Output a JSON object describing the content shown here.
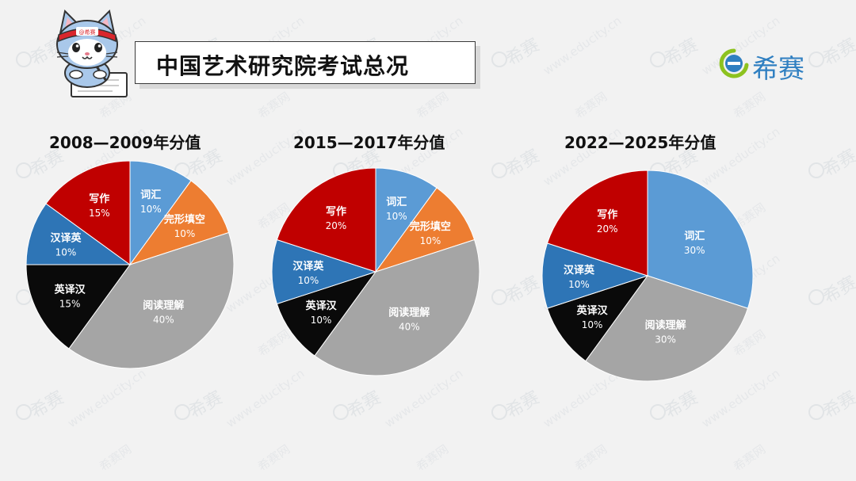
{
  "header": {
    "title": "中国艺术研究院考试总况",
    "brand_name": "希赛",
    "mascot_headband_text": "@希赛"
  },
  "watermark": {
    "brand": "希赛",
    "site": "www.educity.cn",
    "net": "希赛网"
  },
  "colors": {
    "词汇": "#5b9bd5",
    "完形填空": "#ed7d31",
    "阅读理解": "#a5a5a5",
    "英译汉": "#0a0a0a",
    "汉译英": "#2e75b6",
    "写作": "#c00000"
  },
  "chart_data": [
    {
      "type": "pie",
      "title": "2008—2009年分值",
      "slices": [
        {
          "label": "词汇",
          "value": 10,
          "display": "10%"
        },
        {
          "label": "完形填空",
          "value": 10,
          "display": "10%"
        },
        {
          "label": "阅读理解",
          "value": 40,
          "display": "40%"
        },
        {
          "label": "英译汉",
          "value": 15,
          "display": "15%"
        },
        {
          "label": "汉译英",
          "value": 10,
          "display": "10%"
        },
        {
          "label": "写作",
          "value": 15,
          "display": "15%"
        }
      ]
    },
    {
      "type": "pie",
      "title": "2015—2017年分值",
      "slices": [
        {
          "label": "词汇",
          "value": 10,
          "display": "10%"
        },
        {
          "label": "完形填空",
          "value": 10,
          "display": "10%"
        },
        {
          "label": "阅读理解",
          "value": 40,
          "display": "40%"
        },
        {
          "label": "英译汉",
          "value": 10,
          "display": "10%"
        },
        {
          "label": "汉译英",
          "value": 10,
          "display": "10%"
        },
        {
          "label": "写作",
          "value": 20,
          "display": "20%"
        }
      ]
    },
    {
      "type": "pie",
      "title": "2022—2025年分值",
      "slices": [
        {
          "label": "词汇",
          "value": 30,
          "display": "30%"
        },
        {
          "label": "阅读理解",
          "value": 30,
          "display": "30%"
        },
        {
          "label": "英译汉",
          "value": 10,
          "display": "10%"
        },
        {
          "label": "汉译英",
          "value": 10,
          "display": "10%"
        },
        {
          "label": "写作",
          "value": 20,
          "display": "20%"
        }
      ]
    }
  ]
}
